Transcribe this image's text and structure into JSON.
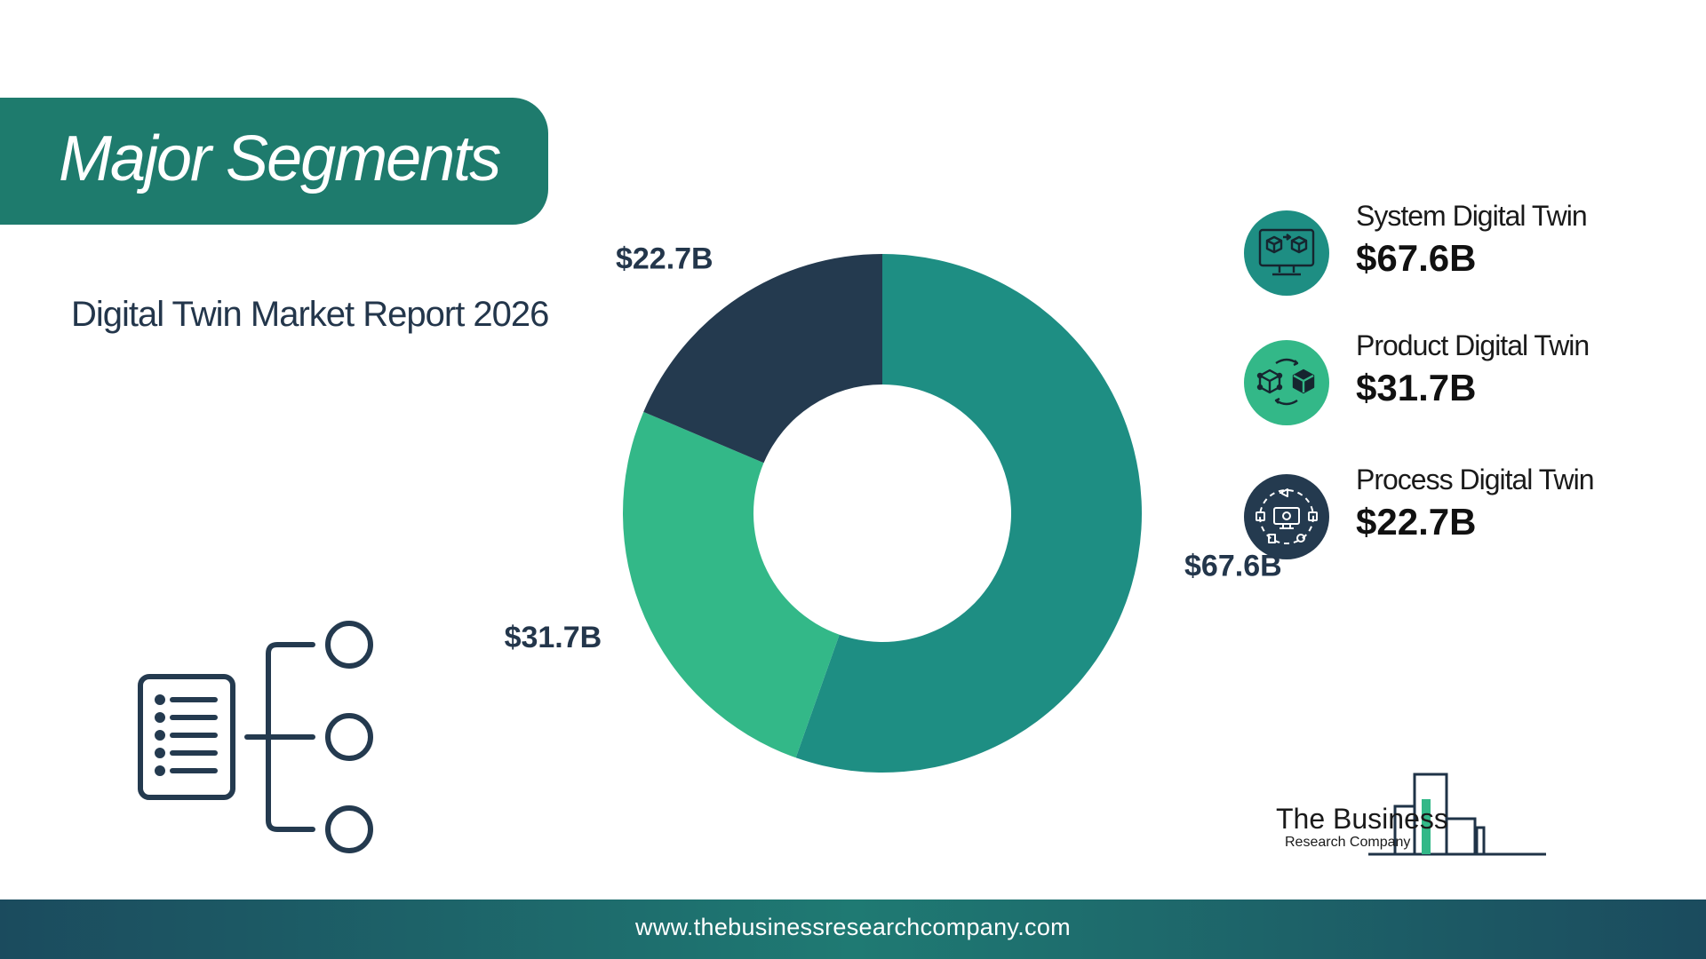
{
  "banner": {
    "title": "Major Segments"
  },
  "subtitle": "Digital Twin Market Report 2026",
  "chart_data": {
    "type": "pie",
    "donut": true,
    "title": "",
    "unit": "$B",
    "categories": [
      "System Digital Twin",
      "Product Digital Twin",
      "Process Digital Twin"
    ],
    "values": [
      67.6,
      31.7,
      22.7
    ],
    "labels": [
      "$67.6B",
      "$31.7B",
      "$22.7B"
    ],
    "colors": [
      "#1e8e83",
      "#33b888",
      "#243a4f"
    ],
    "start_angle": "12 o'clock",
    "direction": "clockwise"
  },
  "legend": [
    {
      "name": "System Digital Twin",
      "value": "$67.6B",
      "icon": "monitor-cubes-icon",
      "color": "#1e8e83"
    },
    {
      "name": "Product Digital Twin",
      "value": "$31.7B",
      "icon": "cube-exchange-icon",
      "color": "#33b888"
    },
    {
      "name": "Process Digital Twin",
      "value": "$22.7B",
      "icon": "process-monitor-icon",
      "color": "#243a4f"
    }
  ],
  "decor": {
    "icon": "segments-list-icon",
    "color": "#243a4f"
  },
  "logo": {
    "line1": "The Business",
    "line2": "Research Company"
  },
  "footer": {
    "url": "www.thebusinessresearchcompany.com"
  }
}
